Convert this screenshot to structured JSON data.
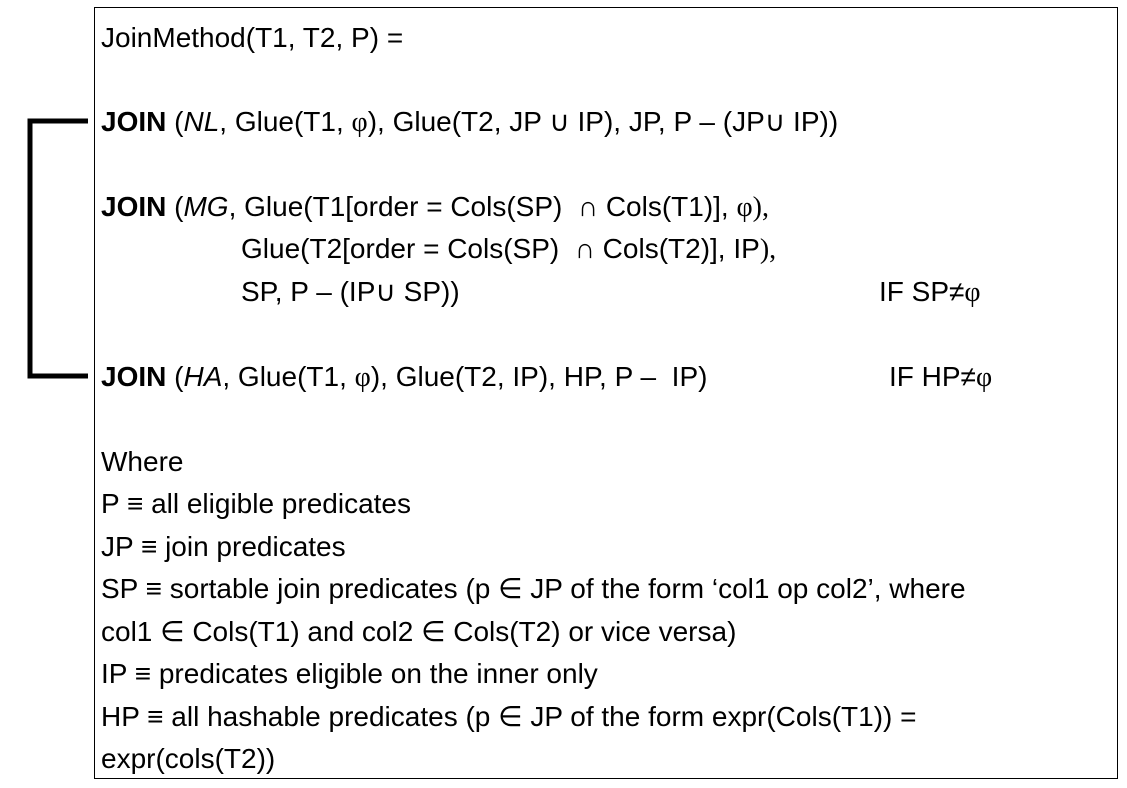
{
  "header": "JoinMethod(T1, T2, P) =",
  "join_nl": {
    "keyword": "JOIN",
    "open": " (",
    "method": "NL",
    "rest_a": ", Glue(T1, ",
    "phi": "φ",
    "rest_b": "), Glue(T2, JP ∪ IP), JP, P – (JP∪ IP))"
  },
  "join_mg": {
    "keyword": "JOIN",
    "open": " (",
    "method": "MG",
    "rest_a": ", Glue(T1[order = Cols(SP)  ∩ Cols(T1)], ",
    "phi": "φ),",
    "line2": "Glue(T2[order = Cols(SP)  ∩ Cols(T2)], IP",
    "line2_tail": "),",
    "line3": "SP, P – (IP∪ SP))",
    "cond_prefix": "IF SP≠",
    "cond_phi": "φ"
  },
  "join_ha": {
    "keyword": "JOIN",
    "open": " (",
    "method": "HA",
    "rest_a": ", Glue(T1, ",
    "phi": "φ",
    "rest_b": "), Glue(T2, IP), HP, P –  IP)",
    "cond_prefix": "IF HP≠",
    "cond_phi": "φ"
  },
  "where": {
    "title": "Where",
    "lines": [
      "P ≡ all eligible predicates",
      "JP ≡ join predicates",
      "SP ≡ sortable join predicates (p ∈ JP of the form ‘col1 op col2’, where",
      "col1 ∈ Cols(T1) and col2 ∈ Cols(T2) or vice versa)",
      "IP ≡ predicates eligible on the inner only",
      "HP ≡ all hashable predicates (p ∈ JP of the form expr(Cols(T1)) =",
      "expr(cols(T2))"
    ]
  }
}
